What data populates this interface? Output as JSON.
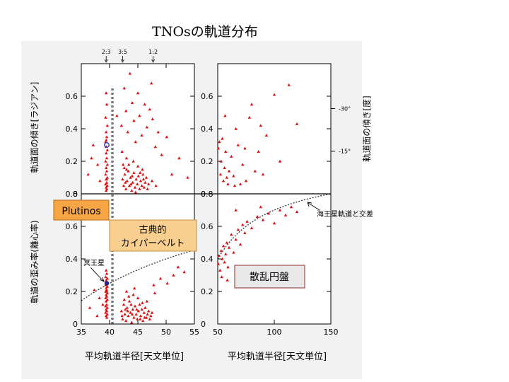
{
  "title": "TNOsの軌道分布",
  "chart_data": {
    "type": "scatter",
    "panels": {
      "inclination_left": {
        "xlim": [
          35,
          55
        ],
        "ylim": [
          0,
          0.8
        ]
      },
      "inclination_right": {
        "xlim": [
          50,
          150
        ],
        "ylim": [
          0,
          0.8
        ]
      },
      "eccentricity_left": {
        "xlim": [
          35,
          55
        ],
        "ylim": [
          0,
          0.8
        ]
      },
      "eccentricity_right": {
        "xlim": [
          50,
          150
        ],
        "ylim": [
          0,
          0.8
        ]
      }
    },
    "xlabel_left": "平均軌道半径[天文単位]",
    "xlabel_right": "平均軌道半径[天文単位]",
    "ylabel_top_left": "軌道面の傾き[ラジアン]",
    "ylabel_bottom_left": "軌道の歪み率(離心率)",
    "ylabel_top_right": "軌道面の傾き[度]",
    "x_ticks_left": [
      "35",
      "40",
      "45",
      "50",
      "55"
    ],
    "x_ticks_right": [
      "50",
      "100",
      "150"
    ],
    "y_ticks": [
      "0",
      "0.2",
      "0.4",
      "0.6",
      "0.8"
    ],
    "y_ticks_inner": [
      "0",
      "0.2",
      "0.4",
      "0.6",
      "0.8"
    ],
    "degree_ticks": [
      {
        "label": "-15°",
        "rad": 0.262
      },
      {
        "label": "-30°",
        "rad": 0.524
      }
    ],
    "resonances": [
      {
        "label": "2:3",
        "a": 39.4
      },
      {
        "label": "3:5",
        "a": 42.3
      },
      {
        "label": "1:2",
        "a": 47.7
      }
    ],
    "pluto": {
      "label": "冥王星",
      "a": 39.5,
      "e": 0.25,
      "i": 0.3
    },
    "neptune_crossing_label": "海王星軌道と交差",
    "annotations": {
      "plutinos": "Plutinos",
      "classical_line1": "古典的",
      "classical_line2": "カイパーベルト",
      "scattered": "散乱円盤"
    },
    "marker_color": "#e01010",
    "inclination_points": [
      [
        39.4,
        0.62
      ],
      [
        39.5,
        0.55
      ],
      [
        39.3,
        0.47
      ],
      [
        39.6,
        0.42
      ],
      [
        39.4,
        0.38
      ],
      [
        39.5,
        0.35
      ],
      [
        39.3,
        0.32
      ],
      [
        39.4,
        0.29
      ],
      [
        39.6,
        0.27
      ],
      [
        39.4,
        0.25
      ],
      [
        39.5,
        0.22
      ],
      [
        39.3,
        0.2
      ],
      [
        39.6,
        0.18
      ],
      [
        39.4,
        0.16
      ],
      [
        39.5,
        0.14
      ],
      [
        39.3,
        0.12
      ],
      [
        39.6,
        0.1
      ],
      [
        39.4,
        0.09
      ],
      [
        39.5,
        0.07
      ],
      [
        39.3,
        0.06
      ],
      [
        39.6,
        0.05
      ],
      [
        39.4,
        0.04
      ],
      [
        39.5,
        0.03
      ],
      [
        39.4,
        0.02
      ],
      [
        39.4,
        0.33
      ],
      [
        39.5,
        0.09
      ],
      [
        36.2,
        0.12
      ],
      [
        37.1,
        0.3
      ],
      [
        37.9,
        0.18
      ],
      [
        38.3,
        0.08
      ],
      [
        36.8,
        0.22
      ],
      [
        42.1,
        0.42
      ],
      [
        42.4,
        0.18
      ],
      [
        42.6,
        0.65
      ],
      [
        42.9,
        0.51
      ],
      [
        43.2,
        0.38
      ],
      [
        43.6,
        0.74
      ],
      [
        44.0,
        0.56
      ],
      [
        44.3,
        0.45
      ],
      [
        44.6,
        0.32
      ],
      [
        45.0,
        0.62
      ],
      [
        45.3,
        0.48
      ],
      [
        45.7,
        0.36
      ],
      [
        46.2,
        0.55
      ],
      [
        46.6,
        0.41
      ],
      [
        47.1,
        0.52
      ],
      [
        47.6,
        0.46
      ],
      [
        48.1,
        0.29
      ],
      [
        48.6,
        0.38
      ],
      [
        49.2,
        0.24
      ],
      [
        50.1,
        0.35
      ],
      [
        42.2,
        0.26
      ],
      [
        43.0,
        0.22
      ],
      [
        41.3,
        0.48
      ],
      [
        47.4,
        0.68
      ],
      [
        42.3,
        0.09
      ],
      [
        42.5,
        0.05
      ],
      [
        42.7,
        0.12
      ],
      [
        42.9,
        0.03
      ],
      [
        43.1,
        0.08
      ],
      [
        43.3,
        0.14
      ],
      [
        43.5,
        0.05
      ],
      [
        43.7,
        0.1
      ],
      [
        43.9,
        0.02
      ],
      [
        44.1,
        0.07
      ],
      [
        44.3,
        0.13
      ],
      [
        44.5,
        0.04
      ],
      [
        44.7,
        0.09
      ],
      [
        44.9,
        0.06
      ],
      [
        45.1,
        0.11
      ],
      [
        45.3,
        0.03
      ],
      [
        45.5,
        0.08
      ],
      [
        45.7,
        0.05
      ],
      [
        45.9,
        0.12
      ],
      [
        46.1,
        0.04
      ],
      [
        46.3,
        0.07
      ],
      [
        46.5,
        0.1
      ],
      [
        46.7,
        0.03
      ],
      [
        46.9,
        0.06
      ],
      [
        42.6,
        0.16
      ],
      [
        43.4,
        0.18
      ],
      [
        44.2,
        0.2
      ],
      [
        45.0,
        0.17
      ],
      [
        45.8,
        0.15
      ],
      [
        43.8,
        0.06
      ],
      [
        44.6,
        0.01
      ],
      [
        43.0,
        0.15
      ],
      [
        44.0,
        0.11
      ],
      [
        45.4,
        0.13
      ],
      [
        46.0,
        0.09
      ],
      [
        42.8,
        0.07
      ],
      [
        47.5,
        0.08
      ],
      [
        48.2,
        0.05
      ],
      [
        51.0,
        0.12
      ],
      [
        52.3,
        0.22
      ],
      [
        53.8,
        0.1
      ]
    ],
    "inclination_points_right": [
      [
        50.5,
        0.28
      ],
      [
        51.5,
        0.32
      ],
      [
        52.5,
        0.12
      ],
      [
        53.0,
        0.2
      ],
      [
        54.0,
        0.34
      ],
      [
        55.0,
        0.08
      ],
      [
        56.0,
        0.16
      ],
      [
        57.0,
        0.26
      ],
      [
        58.0,
        0.1
      ],
      [
        59.0,
        0.06
      ],
      [
        60.0,
        0.14
      ],
      [
        62.0,
        0.23
      ],
      [
        64.0,
        0.11
      ],
      [
        66.0,
        0.4
      ],
      [
        68.0,
        0.3
      ],
      [
        70.0,
        0.06
      ],
      [
        72.0,
        0.18
      ],
      [
        75.0,
        0.08
      ],
      [
        78.0,
        0.47
      ],
      [
        80.0,
        0.55
      ],
      [
        83.0,
        0.14
      ],
      [
        86.0,
        0.26
      ],
      [
        88.0,
        0.42
      ],
      [
        93.0,
        0.36
      ],
      [
        100.0,
        0.61
      ],
      [
        105.0,
        0.2
      ],
      [
        113.0,
        0.67
      ],
      [
        120.0,
        0.43
      ],
      [
        65.0,
        0.05
      ],
      [
        74.0,
        0.28
      ],
      [
        90.0,
        0.12
      ],
      [
        56.5,
        0.48
      ]
    ],
    "eccentricity_points": [
      [
        39.4,
        0.33
      ],
      [
        39.5,
        0.31
      ],
      [
        39.3,
        0.29
      ],
      [
        39.6,
        0.28
      ],
      [
        39.4,
        0.27
      ],
      [
        39.5,
        0.26
      ],
      [
        39.3,
        0.24
      ],
      [
        39.6,
        0.23
      ],
      [
        39.4,
        0.22
      ],
      [
        39.5,
        0.21
      ],
      [
        39.3,
        0.2
      ],
      [
        39.6,
        0.19
      ],
      [
        39.4,
        0.18
      ],
      [
        39.5,
        0.17
      ],
      [
        39.3,
        0.16
      ],
      [
        39.6,
        0.15
      ],
      [
        39.4,
        0.14
      ],
      [
        39.5,
        0.12
      ],
      [
        39.3,
        0.11
      ],
      [
        39.6,
        0.1
      ],
      [
        39.4,
        0.09
      ],
      [
        39.5,
        0.08
      ],
      [
        39.3,
        0.07
      ],
      [
        39.6,
        0.06
      ],
      [
        39.4,
        0.05
      ],
      [
        39.5,
        0.04
      ],
      [
        39.4,
        0.25
      ],
      [
        39.5,
        0.2
      ],
      [
        36.5,
        0.1
      ],
      [
        37.3,
        0.21
      ],
      [
        38.2,
        0.16
      ],
      [
        38.8,
        0.12
      ],
      [
        37.8,
        0.05
      ],
      [
        42.1,
        0.08
      ],
      [
        42.3,
        0.03
      ],
      [
        42.5,
        0.12
      ],
      [
        42.7,
        0.06
      ],
      [
        42.9,
        0.02
      ],
      [
        43.1,
        0.1
      ],
      [
        43.3,
        0.05
      ],
      [
        43.5,
        0.14
      ],
      [
        43.7,
        0.07
      ],
      [
        43.9,
        0.01
      ],
      [
        44.1,
        0.09
      ],
      [
        44.3,
        0.04
      ],
      [
        44.5,
        0.11
      ],
      [
        44.7,
        0.06
      ],
      [
        44.9,
        0.03
      ],
      [
        45.1,
        0.08
      ],
      [
        45.3,
        0.12
      ],
      [
        45.5,
        0.05
      ],
      [
        45.7,
        0.09
      ],
      [
        45.9,
        0.02
      ],
      [
        46.1,
        0.07
      ],
      [
        46.3,
        0.1
      ],
      [
        46.5,
        0.04
      ],
      [
        46.7,
        0.06
      ],
      [
        46.9,
        0.08
      ],
      [
        47.1,
        0.03
      ],
      [
        47.3,
        0.05
      ],
      [
        47.5,
        0.07
      ],
      [
        42.6,
        0.15
      ],
      [
        43.4,
        0.17
      ],
      [
        44.2,
        0.18
      ],
      [
        45.0,
        0.16
      ],
      [
        45.8,
        0.13
      ],
      [
        46.6,
        0.14
      ],
      [
        43.0,
        0.2
      ],
      [
        44.4,
        0.22
      ],
      [
        42.2,
        0.05
      ],
      [
        43.2,
        0.08
      ],
      [
        44.8,
        0.09
      ],
      [
        46.2,
        0.04
      ],
      [
        43.8,
        0.12
      ],
      [
        45.4,
        0.03
      ],
      [
        42.8,
        0.09
      ],
      [
        44.0,
        0.06
      ],
      [
        48.0,
        0.19
      ],
      [
        49.0,
        0.28
      ],
      [
        50.2,
        0.25
      ],
      [
        51.3,
        0.3
      ],
      [
        52.1,
        0.35
      ],
      [
        53.2,
        0.32
      ],
      [
        47.8,
        0.24
      ]
    ],
    "eccentricity_points_right": [
      [
        50.5,
        0.37
      ],
      [
        51.0,
        0.42
      ],
      [
        52.0,
        0.33
      ],
      [
        53.0,
        0.45
      ],
      [
        54.0,
        0.4
      ],
      [
        55.0,
        0.48
      ],
      [
        56.0,
        0.38
      ],
      [
        57.0,
        0.43
      ],
      [
        58.0,
        0.5
      ],
      [
        59.0,
        0.35
      ],
      [
        60.0,
        0.47
      ],
      [
        62.0,
        0.55
      ],
      [
        64.0,
        0.44
      ],
      [
        66.0,
        0.52
      ],
      [
        68.0,
        0.58
      ],
      [
        70.0,
        0.49
      ],
      [
        72.0,
        0.61
      ],
      [
        74.0,
        0.56
      ],
      [
        76.0,
        0.63
      ],
      [
        80.0,
        0.59
      ],
      [
        85.0,
        0.66
      ],
      [
        90.0,
        0.64
      ],
      [
        95.0,
        0.68
      ],
      [
        100.0,
        0.62
      ],
      [
        105.0,
        0.7
      ],
      [
        110.0,
        0.67
      ],
      [
        115.0,
        0.72
      ],
      [
        120.0,
        0.69
      ],
      [
        66.0,
        0.7
      ],
      [
        88.0,
        0.72
      ],
      [
        53.5,
        0.29
      ],
      [
        58.5,
        0.27
      ]
    ],
    "pluto_point": {
      "a": 39.5,
      "e": 0.25,
      "i": 0.3
    }
  }
}
